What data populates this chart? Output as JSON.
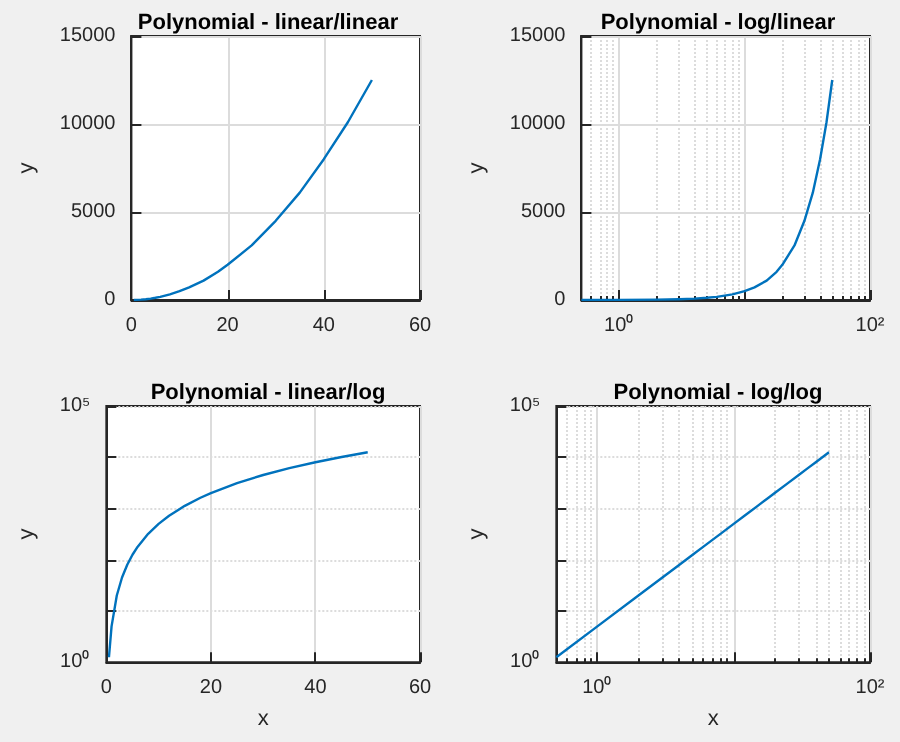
{
  "chart_data": [
    {
      "type": "line",
      "title": "Polynomial - linear/linear",
      "ylabel": "y",
      "x": [
        0.5,
        1,
        2,
        3,
        4,
        5,
        6,
        8,
        10,
        12,
        15,
        18,
        20,
        25,
        30,
        35,
        40,
        45,
        50
      ],
      "series": [
        {
          "color": "#0072bd",
          "values": [
            1,
            5,
            20,
            45,
            80,
            125,
            180,
            320,
            500,
            720,
            1100,
            1600,
            2000,
            3100,
            4500,
            6100,
            8000,
            10100,
            12500
          ]
        }
      ],
      "xlim": [
        0,
        60
      ],
      "xticks": [
        0,
        20,
        40,
        60
      ],
      "ylim": [
        0,
        15000
      ],
      "yticks": [
        0,
        5000,
        10000,
        15000
      ],
      "grid": true
    },
    {
      "type": "line",
      "title": "Polynomial - log/linear",
      "ylabel": "y",
      "x": [
        0.5,
        1,
        2,
        3,
        4,
        5,
        6,
        8,
        10,
        12,
        15,
        18,
        20,
        25,
        30,
        35,
        40,
        45,
        50
      ],
      "series": [
        {
          "color": "#0072bd",
          "values": [
            1,
            5,
            20,
            45,
            80,
            125,
            180,
            320,
            500,
            720,
            1100,
            1600,
            2000,
            3100,
            4500,
            6100,
            8000,
            10100,
            12500
          ]
        }
      ],
      "xlim": [
        0.5,
        100
      ],
      "xticks": [
        {
          "value": 1,
          "label": "10⁰"
        },
        {
          "value": 10,
          "label": null
        },
        {
          "value": 100,
          "label": "10²"
        }
      ],
      "ylim": [
        0,
        15000
      ],
      "yticks": [
        0,
        5000,
        10000,
        15000
      ],
      "grid": true,
      "log": "x"
    },
    {
      "type": "line",
      "title": "Polynomial - linear/log",
      "xlabel": "x",
      "ylabel": "y",
      "x": [
        0.5,
        1,
        2,
        3,
        4,
        5,
        6,
        8,
        10,
        12,
        15,
        18,
        20,
        25,
        30,
        35,
        40,
        45,
        50
      ],
      "series": [
        {
          "color": "#0072bd",
          "values": [
            1.25,
            5,
            20,
            45,
            80,
            125,
            180,
            320,
            500,
            720,
            1125,
            1620,
            2000,
            3125,
            4500,
            6125,
            8000,
            10125,
            12500
          ]
        }
      ],
      "xlim": [
        0,
        60
      ],
      "xticks": [
        0,
        20,
        40,
        60
      ],
      "ylim": [
        1,
        100000
      ],
      "yticks": [
        {
          "value": 1,
          "label": "10⁰"
        },
        {
          "value": 10,
          "label": null
        },
        {
          "value": 100,
          "label": null
        },
        {
          "value": 1000,
          "label": null
        },
        {
          "value": 10000,
          "label": null
        },
        {
          "value": 100000,
          "label": "10⁵"
        }
      ],
      "grid": true,
      "log": "y"
    },
    {
      "type": "line",
      "title": "Polynomial - log/log",
      "xlabel": "x",
      "ylabel": "y",
      "x": [
        0.5,
        1,
        2,
        3,
        4,
        5,
        6,
        8,
        10,
        12,
        15,
        18,
        20,
        25,
        30,
        35,
        40,
        45,
        50
      ],
      "series": [
        {
          "color": "#0072bd",
          "values": [
            1.25,
            5,
            20,
            45,
            80,
            125,
            180,
            320,
            500,
            720,
            1125,
            1620,
            2000,
            3125,
            4500,
            6125,
            8000,
            10125,
            12500
          ]
        }
      ],
      "xlim": [
        0.5,
        100
      ],
      "xticks": [
        {
          "value": 1,
          "label": "10⁰"
        },
        {
          "value": 10,
          "label": null
        },
        {
          "value": 100,
          "label": "10²"
        }
      ],
      "ylim": [
        1,
        100000
      ],
      "yticks": [
        {
          "value": 1,
          "label": "10⁰"
        },
        {
          "value": 10,
          "label": null
        },
        {
          "value": 100,
          "label": null
        },
        {
          "value": 1000,
          "label": null
        },
        {
          "value": 10000,
          "label": null
        },
        {
          "value": 100000,
          "label": "10⁵"
        }
      ],
      "grid": true,
      "log": "xy"
    }
  ]
}
